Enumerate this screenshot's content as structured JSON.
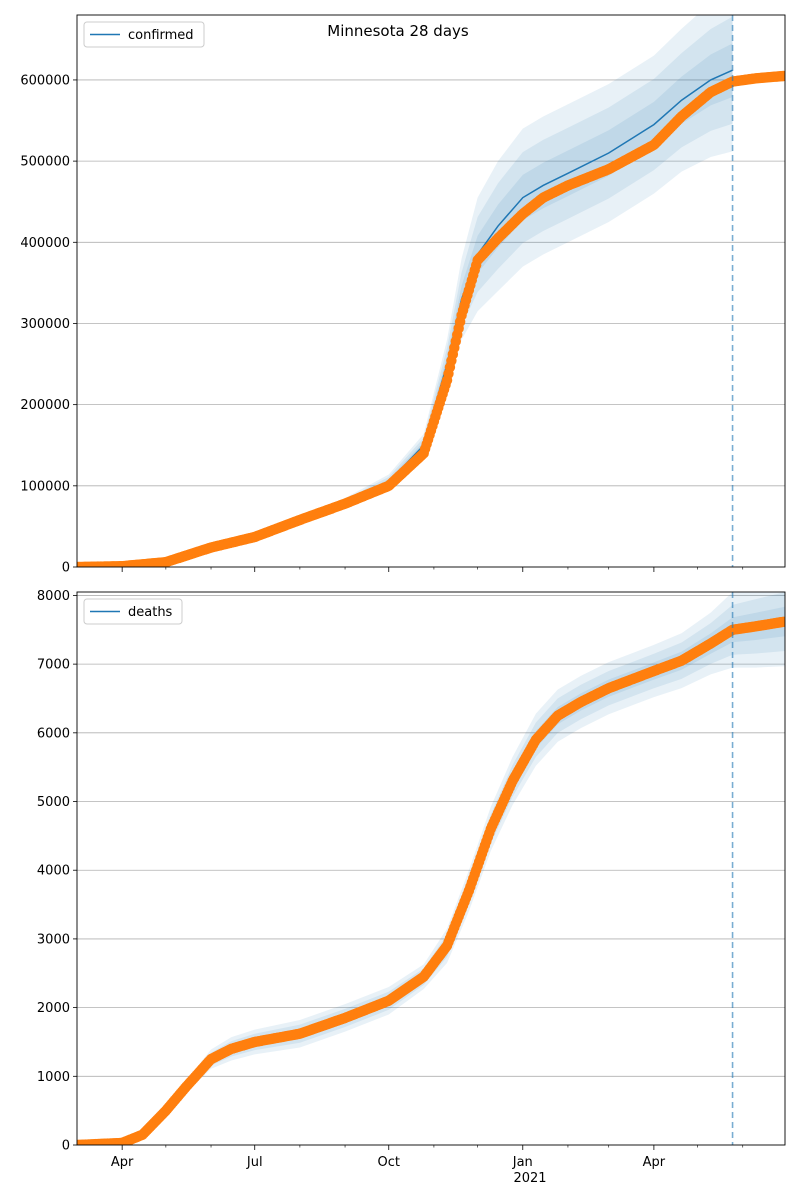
{
  "chart_data": [
    {
      "type": "line",
      "title": "Minnesota 28 days",
      "xlabel": "",
      "ylabel": "",
      "x_ticks": [
        "Apr",
        "Jul",
        "Oct",
        "Jan",
        "Apr"
      ],
      "x_year_label": "2021",
      "xlim": [
        "2020-03-01",
        "2021-06-30"
      ],
      "ylim": [
        0,
        680000
      ],
      "y_ticks": [
        0,
        100000,
        200000,
        300000,
        400000,
        500000,
        600000
      ],
      "grid": "horizontal",
      "legend_position": "top-left",
      "forecast_start": "2021-05-25",
      "colors": {
        "model": "#1f77b4",
        "observed": "#ff7f0e",
        "band": "#1f77b4"
      },
      "series": [
        {
          "name": "confirmed",
          "kind": "model-line",
          "x": [
            "2020-03-01",
            "2020-04-01",
            "2020-05-01",
            "2020-06-01",
            "2020-07-01",
            "2020-08-01",
            "2020-09-01",
            "2020-10-01",
            "2020-10-25",
            "2020-11-10",
            "2020-11-20",
            "2020-12-01",
            "2020-12-15",
            "2021-01-01",
            "2021-01-15",
            "2021-02-01",
            "2021-03-01",
            "2021-04-01",
            "2021-04-20",
            "2021-05-10",
            "2021-05-25"
          ],
          "values": [
            0,
            1500,
            8000,
            25000,
            38000,
            60000,
            80000,
            105000,
            150000,
            250000,
            330000,
            385000,
            420000,
            455000,
            470000,
            485000,
            510000,
            545000,
            575000,
            600000,
            612000
          ],
          "band_half_widths": [
            0,
            0,
            0,
            0,
            1500,
            3000,
            5000,
            9000,
            14000,
            30000,
            50000,
            70000,
            80000,
            85000,
            85000,
            85000,
            85000,
            85000,
            88000,
            95000,
            100000
          ]
        },
        {
          "name": "",
          "kind": "observed",
          "x": [
            "2020-03-01",
            "2020-04-01",
            "2020-05-01",
            "2020-06-01",
            "2020-07-01",
            "2020-08-01",
            "2020-09-01",
            "2020-10-01",
            "2020-10-25",
            "2020-11-10",
            "2020-11-20",
            "2020-12-01",
            "2020-12-15",
            "2021-01-01",
            "2021-01-15",
            "2021-02-01",
            "2021-03-01",
            "2021-04-01",
            "2021-04-20",
            "2021-05-10",
            "2021-05-25",
            "2021-06-10",
            "2021-06-30"
          ],
          "values": [
            0,
            1000,
            6000,
            24000,
            37000,
            58000,
            78000,
            100000,
            140000,
            230000,
            310000,
            378000,
            405000,
            435000,
            455000,
            470000,
            490000,
            520000,
            555000,
            585000,
            598000,
            602000,
            605000
          ]
        }
      ]
    },
    {
      "type": "line",
      "title": "",
      "xlabel": "",
      "ylabel": "",
      "x_ticks": [
        "Apr",
        "Jul",
        "Oct",
        "Jan",
        "Apr"
      ],
      "x_year_label": "2021",
      "xlim": [
        "2020-03-01",
        "2021-06-30"
      ],
      "ylim": [
        0,
        8050
      ],
      "y_ticks": [
        0,
        1000,
        2000,
        3000,
        4000,
        5000,
        6000,
        7000,
        8000
      ],
      "grid": "horizontal",
      "legend_position": "top-left",
      "forecast_start": "2021-05-25",
      "colors": {
        "model": "#1f77b4",
        "observed": "#ff7f0e",
        "band": "#1f77b4"
      },
      "series": [
        {
          "name": "deaths",
          "kind": "model-line",
          "x": [
            "2020-03-01",
            "2020-04-01",
            "2020-04-15",
            "2020-05-01",
            "2020-05-15",
            "2020-06-01",
            "2020-06-15",
            "2020-07-01",
            "2020-08-01",
            "2020-09-01",
            "2020-10-01",
            "2020-10-25",
            "2020-11-10",
            "2020-11-25",
            "2020-12-10",
            "2020-12-25",
            "2021-01-10",
            "2021-01-25",
            "2021-02-10",
            "2021-03-01",
            "2021-04-01",
            "2021-04-20",
            "2021-05-10",
            "2021-05-25",
            "2021-06-10",
            "2021-06-30"
          ],
          "values": [
            0,
            30,
            150,
            500,
            850,
            1250,
            1400,
            1500,
            1620,
            1850,
            2100,
            2450,
            2900,
            3700,
            4600,
            5300,
            5900,
            6250,
            6450,
            6650,
            6900,
            7050,
            7300,
            7500,
            7550,
            7620
          ],
          "band_half_widths": [
            0,
            0,
            30,
            60,
            90,
            140,
            170,
            180,
            200,
            200,
            200,
            180,
            250,
            300,
            320,
            350,
            380,
            380,
            380,
            380,
            380,
            400,
            450,
            550,
            600,
            650
          ]
        },
        {
          "name": "",
          "kind": "observed",
          "x": [
            "2020-03-01",
            "2020-04-01",
            "2020-04-15",
            "2020-05-01",
            "2020-05-15",
            "2020-06-01",
            "2020-06-15",
            "2020-07-01",
            "2020-08-01",
            "2020-09-01",
            "2020-10-01",
            "2020-10-25",
            "2020-11-10",
            "2020-11-25",
            "2020-12-10",
            "2020-12-25",
            "2021-01-10",
            "2021-01-25",
            "2021-02-10",
            "2021-03-01",
            "2021-04-01",
            "2021-04-20",
            "2021-05-10",
            "2021-05-25",
            "2021-06-10",
            "2021-06-30"
          ],
          "values": [
            0,
            30,
            150,
            500,
            850,
            1250,
            1400,
            1500,
            1620,
            1850,
            2100,
            2450,
            2900,
            3700,
            4600,
            5300,
            5900,
            6250,
            6450,
            6650,
            6900,
            7050,
            7300,
            7500,
            7550,
            7620
          ]
        }
      ]
    }
  ]
}
